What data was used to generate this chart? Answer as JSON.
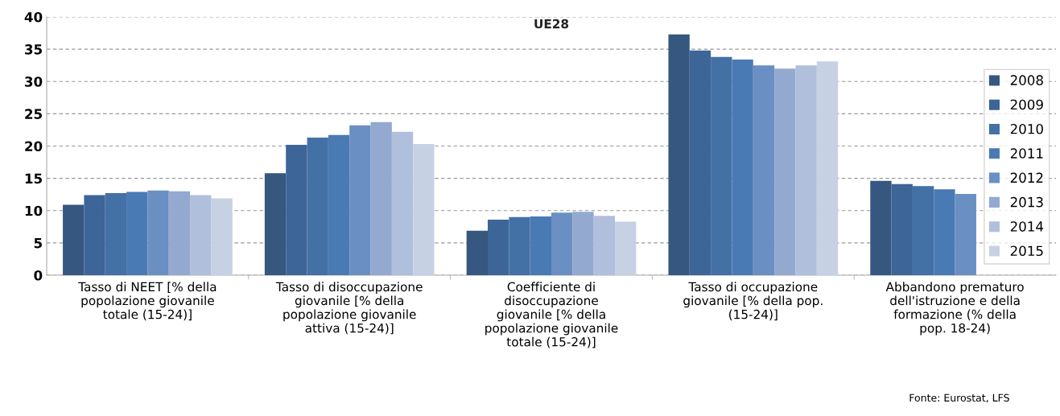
{
  "chart_data": {
    "type": "bar",
    "title": "UE28",
    "categories": [
      "Tasso di NEET [% della\npopolazione giovanile\ntotale (15-24)]",
      "Tasso di disoccupazione\ngiovanile [% della\npopolazione giovanile\nattiva (15-24)]",
      "Coefficiente di\ndisoccupazione\ngiovanile [% della\npopolazione giovanile\ntotale (15-24)]",
      "Tasso di occupazione\ngiovanile [% della pop.\n(15-24)]",
      "Abbandono prematuro\ndell'istruzione e della\nformazione (% della\npop. 18-24)"
    ],
    "series": [
      {
        "name": "2008",
        "color": "#36577f",
        "values": [
          10.9,
          15.8,
          6.9,
          37.3,
          14.6
        ]
      },
      {
        "name": "2009",
        "color": "#3d6598",
        "values": [
          12.4,
          20.2,
          8.6,
          34.8,
          14.1
        ]
      },
      {
        "name": "2010",
        "color": "#4371a6",
        "values": [
          12.7,
          21.3,
          9.0,
          33.8,
          13.8
        ]
      },
      {
        "name": "2011",
        "color": "#4a7ab4",
        "values": [
          12.9,
          21.7,
          9.1,
          33.4,
          13.3
        ]
      },
      {
        "name": "2012",
        "color": "#6a8fc2",
        "values": [
          13.1,
          23.2,
          9.7,
          32.5,
          12.6
        ]
      },
      {
        "name": "2013",
        "color": "#93a9d0",
        "values": [
          13.0,
          23.7,
          9.8,
          32.0,
          null
        ]
      },
      {
        "name": "2014",
        "color": "#b0bfdc",
        "values": [
          12.4,
          22.2,
          9.2,
          32.5,
          null
        ]
      },
      {
        "name": "2015",
        "color": "#c7d1e4",
        "values": [
          11.9,
          20.3,
          8.3,
          33.1,
          null
        ]
      }
    ],
    "ylim": [
      0,
      40
    ],
    "yticks": [
      0,
      5,
      10,
      15,
      20,
      25,
      30,
      35,
      40
    ],
    "grid": "y",
    "legend": "right",
    "annotations": [
      "Fonte: Eurostat, LFS"
    ]
  }
}
